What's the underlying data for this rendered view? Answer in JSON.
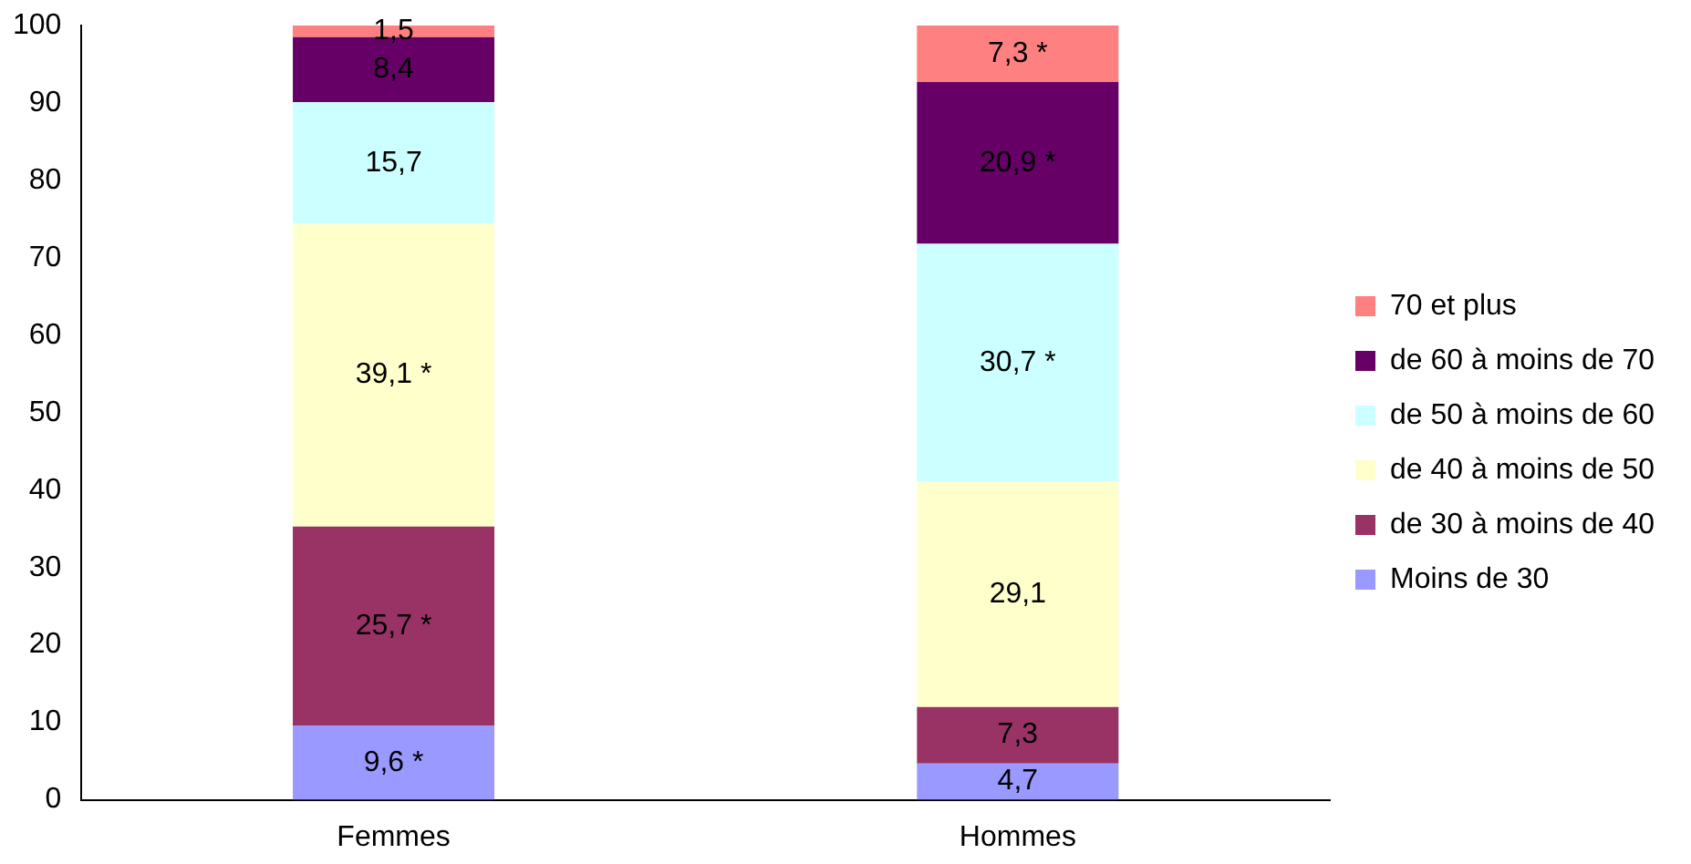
{
  "chart_data": {
    "type": "bar",
    "stacked": true,
    "categories": [
      "Femmes",
      "Hommes"
    ],
    "series": [
      {
        "name": "Moins de 30",
        "color": "#9999ff",
        "values": [
          9.6,
          4.7
        ],
        "value_labels": [
          "9,6 *",
          "4,7"
        ]
      },
      {
        "name": "de 30 à moins de 40",
        "color": "#993366",
        "values": [
          25.7,
          7.3
        ],
        "value_labels": [
          "25,7 *",
          "7,3"
        ]
      },
      {
        "name": "de 40 à moins de 50",
        "color": "#ffffcc",
        "values": [
          39.1,
          29.1
        ],
        "value_labels": [
          "39,1 *",
          "29,1"
        ]
      },
      {
        "name": "de 50 à moins de 60",
        "color": "#ccffff",
        "values": [
          15.7,
          30.7
        ],
        "value_labels": [
          "15,7",
          "30,7 *"
        ]
      },
      {
        "name": "de 60 à moins de 70",
        "color": "#660066",
        "values": [
          8.4,
          20.9
        ],
        "value_labels": [
          "8,4",
          "20,9 *"
        ]
      },
      {
        "name": "70 et plus",
        "color": "#ff8080",
        "values": [
          1.5,
          7.3
        ],
        "value_labels": [
          "1,5",
          "7,3 *"
        ]
      }
    ],
    "ylim": [
      0,
      100
    ],
    "yticks": [
      0,
      10,
      20,
      30,
      40,
      50,
      60,
      70,
      80,
      90,
      100
    ],
    "grid": false,
    "legend": "right"
  }
}
